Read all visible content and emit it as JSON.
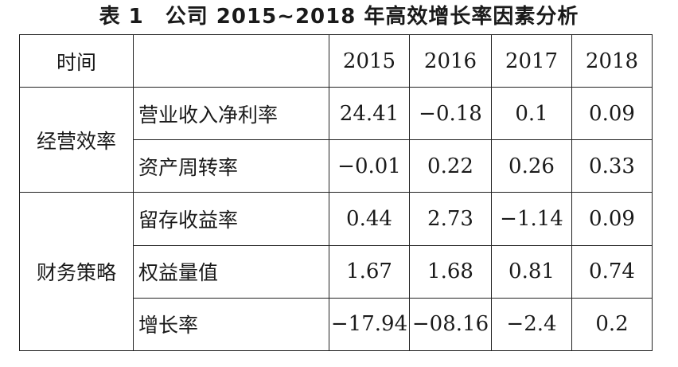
{
  "caption": "表 1　公司 2015~2018 年高效增长率因素分析",
  "table": {
    "header": {
      "label": "时间",
      "years": [
        "2015",
        "2016",
        "2017",
        "2018"
      ]
    },
    "groups": [
      {
        "name": "经营效率",
        "rows": [
          {
            "metric": "营业收入净利率",
            "values": [
              "24.41",
              "−0.18",
              "0.1",
              "0.09"
            ]
          },
          {
            "metric": "资产周转率",
            "values": [
              "−0.01",
              "0.22",
              "0.26",
              "0.33"
            ]
          }
        ]
      },
      {
        "name": "财务策略",
        "rows": [
          {
            "metric": "留存收益率",
            "values": [
              "0.44",
              "2.73",
              "−1.14",
              "0.09"
            ]
          },
          {
            "metric": "权益量值",
            "values": [
              "1.67",
              "1.68",
              "0.81",
              "0.74"
            ]
          },
          {
            "metric": "增长率",
            "values": [
              "−17.94",
              "−08.16",
              "−2.4",
              "0.2"
            ]
          }
        ]
      }
    ]
  }
}
